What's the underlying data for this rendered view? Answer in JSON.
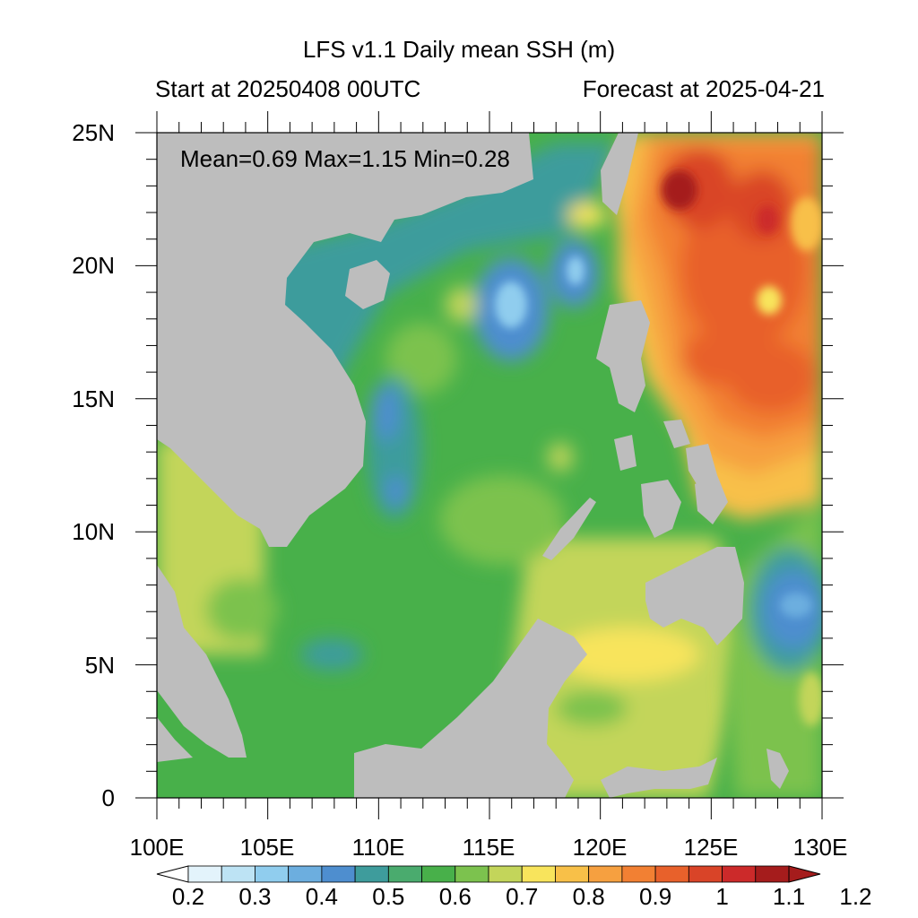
{
  "title": "LFS v1.1 Daily mean SSH (m)",
  "start_label": "Start at 20250408 00UTC",
  "forecast_label": "Forecast at 2025-04-21",
  "stats": "Mean=0.69  Max=1.15  Min=0.28",
  "axes": {
    "lat_ticks": [
      "25N",
      "20N",
      "15N",
      "10N",
      "5N",
      "0"
    ],
    "lon_ticks": [
      "100E",
      "105E",
      "110E",
      "115E",
      "120E",
      "125E",
      "130E"
    ],
    "lat_range": [
      0,
      25
    ],
    "lon_range": [
      100,
      130
    ]
  },
  "colorbar": {
    "labels": [
      "0.2",
      "0.3",
      "0.4",
      "0.5",
      "0.6",
      "0.7",
      "0.8",
      "0.9",
      "1",
      "1.1",
      "1.2"
    ],
    "colors": [
      "#e3f3fb",
      "#bde3f4",
      "#90cdee",
      "#6caedf",
      "#4e8ecf",
      "#3e9c9c",
      "#4aab6e",
      "#48b04a",
      "#7cc24e",
      "#c3d55a",
      "#f8e45c",
      "#f8c048",
      "#f6a040",
      "#f28033",
      "#e8612b",
      "#d94428",
      "#cc2a2a",
      "#a51c1c"
    ],
    "range": [
      0.2,
      1.2
    ]
  },
  "colors": {
    "land": "#bdbdbd",
    "ocean_mid": "#48b04a",
    "ocean_high": "#e8612b",
    "ocean_low": "#6caedf"
  }
}
